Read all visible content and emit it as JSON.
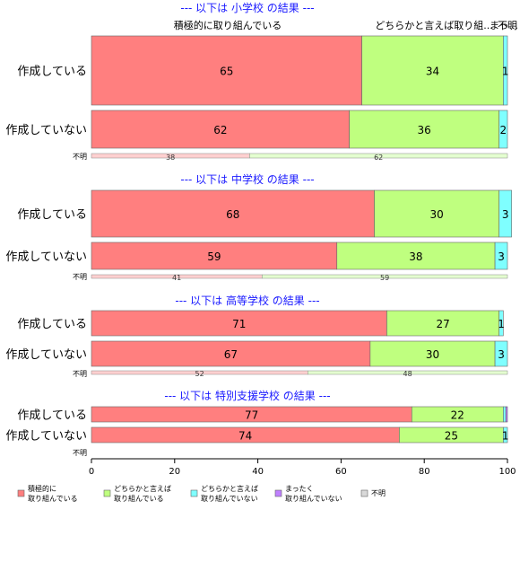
{
  "chart_data": {
    "type": "bar",
    "orientation": "horizontal-stacked",
    "xlim": [
      0,
      100
    ],
    "xticks": [
      0,
      20,
      40,
      60,
      80,
      100
    ],
    "categories_legend": [
      "積極的に取り組んでいる",
      "どちらかと言えば取り組んでいる",
      "どちらかと言えば取り組んでいない",
      "まったく取り組んでいない",
      "不明"
    ],
    "colors": [
      "#ff7f7f",
      "#bfff7f",
      "#7fffff",
      "#bf7fff",
      "#d9d9d9"
    ],
    "legend": [
      {
        "line1": "積極的に",
        "line2": "取り組んでいる",
        "color": "#ff7f7f"
      },
      {
        "line1": "どちらかと言えば",
        "line2": "取り組んでいる",
        "color": "#bfff7f"
      },
      {
        "line1": "どちらかと言えば",
        "line2": "取り組んでいない",
        "color": "#7fffff"
      },
      {
        "line1": "まったく",
        "line2": "取り組んでいない",
        "color": "#bf7fff"
      },
      {
        "line1": "不明",
        "line2": "",
        "color": "#d9d9d9"
      }
    ],
    "top_labels": [
      "積極的に取り組んでいる",
      "どちらかと言えば取り組...",
      "まっ...",
      "不明"
    ],
    "sections": [
      {
        "title": "--- 以下は 小学校 の結果 ---",
        "rows": [
          {
            "label": "作成している",
            "values": [
              65,
              34,
              1,
              0,
              0
            ],
            "bar_labels": [
              "65",
              "34",
              "1",
              "",
              ""
            ]
          },
          {
            "label": "作成していない",
            "values": [
              62,
              36,
              2,
              0,
              0
            ],
            "bar_labels": [
              "62",
              "36",
              "2",
              "",
              ""
            ]
          }
        ],
        "share": {
          "label": "不明",
          "values": [
            38,
            62
          ],
          "bar_labels": [
            "38",
            "62"
          ]
        }
      },
      {
        "title": "--- 以下は 中学校 の結果 ---",
        "rows": [
          {
            "label": "作成している",
            "values": [
              68,
              30,
              3,
              0,
              0
            ],
            "bar_labels": [
              "68",
              "30",
              "3",
              "",
              ""
            ]
          },
          {
            "label": "作成していない",
            "values": [
              59,
              38,
              3,
              0,
              0
            ],
            "bar_labels": [
              "59",
              "38",
              "3",
              "",
              ""
            ]
          }
        ],
        "share": {
          "label": "不明",
          "values": [
            41,
            59
          ],
          "bar_labels": [
            "41",
            "59"
          ]
        }
      },
      {
        "title": "--- 以下は 高等学校 の結果 ---",
        "rows": [
          {
            "label": "作成している",
            "values": [
              71,
              27,
              1,
              0,
              0
            ],
            "bar_labels": [
              "71",
              "27",
              "1",
              "",
              ""
            ]
          },
          {
            "label": "作成していない",
            "values": [
              67,
              30,
              3,
              0,
              0
            ],
            "bar_labels": [
              "67",
              "30",
              "3",
              "",
              ""
            ]
          }
        ],
        "share": {
          "label": "不明",
          "values": [
            52,
            48
          ],
          "bar_labels": [
            "52",
            "48"
          ]
        }
      },
      {
        "title": "--- 以下は 特別支援学校 の結果 ---",
        "rows": [
          {
            "label": "作成している",
            "values": [
              77,
              22,
              0.6,
              0.4,
              0
            ],
            "bar_labels": [
              "77",
              "22",
              "",
              "",
              ""
            ]
          },
          {
            "label": "作成していない",
            "values": [
              74,
              25,
              1,
              0,
              0
            ],
            "bar_labels": [
              "74",
              "25",
              "1",
              "",
              ""
            ]
          }
        ],
        "share": {
          "label": "不明",
          "values": [],
          "bar_labels": []
        }
      }
    ]
  }
}
